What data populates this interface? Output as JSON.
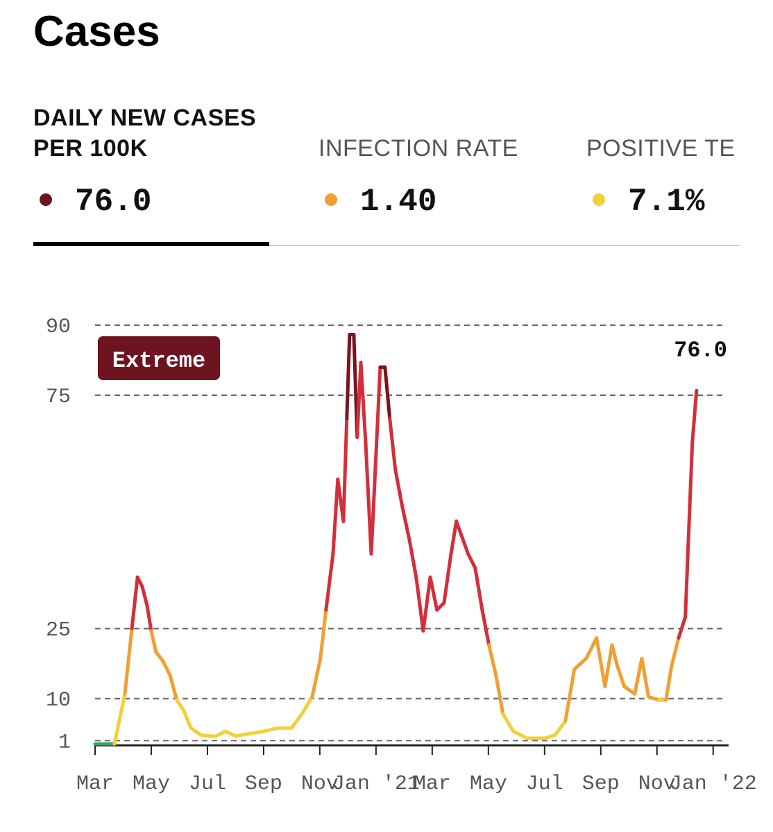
{
  "header": {
    "title": "Cases"
  },
  "tabs": [
    {
      "label_lines": [
        "DAILY NEW CASES",
        "PER 100K"
      ],
      "value": "76.0",
      "color": "#6e1420",
      "active": true
    },
    {
      "label_lines": [
        "INFECTION RATE"
      ],
      "value": "1.40",
      "color": "#f0a033",
      "active": false
    },
    {
      "label_lines": [
        "POSITIVE TE"
      ],
      "value": "7.1%",
      "color": "#f4cf3b",
      "active": false
    }
  ],
  "chart_data": {
    "type": "line",
    "badge": "Extreme",
    "badge_color": "#6e1420",
    "last_label": "76.0",
    "level_colors": [
      "#3ba55c",
      "#f4cf3b",
      "#f0a033",
      "#d32f3a",
      "#7a1420"
    ],
    "x": [
      0,
      0.69,
      1.06,
      1.31,
      1.51,
      1.68,
      1.85,
      2,
      2.17,
      2.42,
      2.67,
      2.91,
      3.16,
      3.41,
      3.78,
      4.27,
      4.64,
      5.01,
      5.51,
      6,
      6.49,
      6.99,
      7.36,
      7.73,
      8.02,
      8.22,
      8.47,
      8.64,
      8.84,
      8.96,
      9.06,
      9.21,
      9.33,
      9.46,
      9.63,
      9.83,
      9.95,
      10.15,
      10.32,
      10.49,
      10.69,
      10.94,
      11.19,
      11.43,
      11.68,
      11.93,
      12.17,
      12.42,
      12.67,
      12.86,
      13.04,
      13.28,
      13.53,
      13.78,
      14.02,
      14.27,
      14.52,
      14.89,
      15.38,
      16,
      16.37,
      16.74,
      17.06,
      17.48,
      17.85,
      18.15,
      18.4,
      18.59,
      18.84,
      19.21,
      19.46,
      19.7,
      20.07,
      20.32,
      20.52,
      20.77,
      21.01,
      21.14,
      21.26,
      21.41
    ],
    "values": [
      0.3,
      0.3,
      11,
      25,
      36,
      34,
      30,
      24.5,
      20,
      18,
      15,
      9.7,
      7.4,
      3.7,
      2.2,
      1.9,
      3,
      2,
      2.5,
      3,
      3.7,
      3.7,
      6.7,
      10.4,
      18.6,
      29,
      41,
      57,
      48,
      70,
      88,
      88,
      66,
      82,
      65,
      41,
      56,
      81,
      81,
      70,
      59,
      51,
      44,
      36,
      24.5,
      36,
      29,
      30.5,
      41,
      48,
      45,
      41,
      38,
      29,
      21.5,
      15,
      6.7,
      3,
      1.5,
      1.5,
      2.2,
      5.2,
      16.3,
      18.6,
      23,
      12.6,
      21.5,
      17,
      12.6,
      11,
      18.6,
      10.4,
      9.7,
      9.7,
      17,
      23,
      27.5,
      47,
      65,
      76
    ],
    "xlim": [
      0,
      22.55
    ],
    "xticks": [
      {
        "value": 0,
        "label": "Mar"
      },
      {
        "value": 2,
        "label": "May"
      },
      {
        "value": 4,
        "label": "Jul"
      },
      {
        "value": 6,
        "label": "Sep"
      },
      {
        "value": 8,
        "label": "Nov"
      },
      {
        "value": 10,
        "label": "Jan '21"
      },
      {
        "value": 12,
        "label": "Mar"
      },
      {
        "value": 14,
        "label": "May"
      },
      {
        "value": 16,
        "label": "Jul"
      },
      {
        "value": 18,
        "label": "Sep"
      },
      {
        "value": 20,
        "label": "Nov"
      },
      {
        "value": 22,
        "label": "Jan '22"
      }
    ],
    "ylim": [
      0,
      90
    ],
    "yticks": [
      1,
      10,
      25,
      75,
      90
    ],
    "grid": true
  }
}
